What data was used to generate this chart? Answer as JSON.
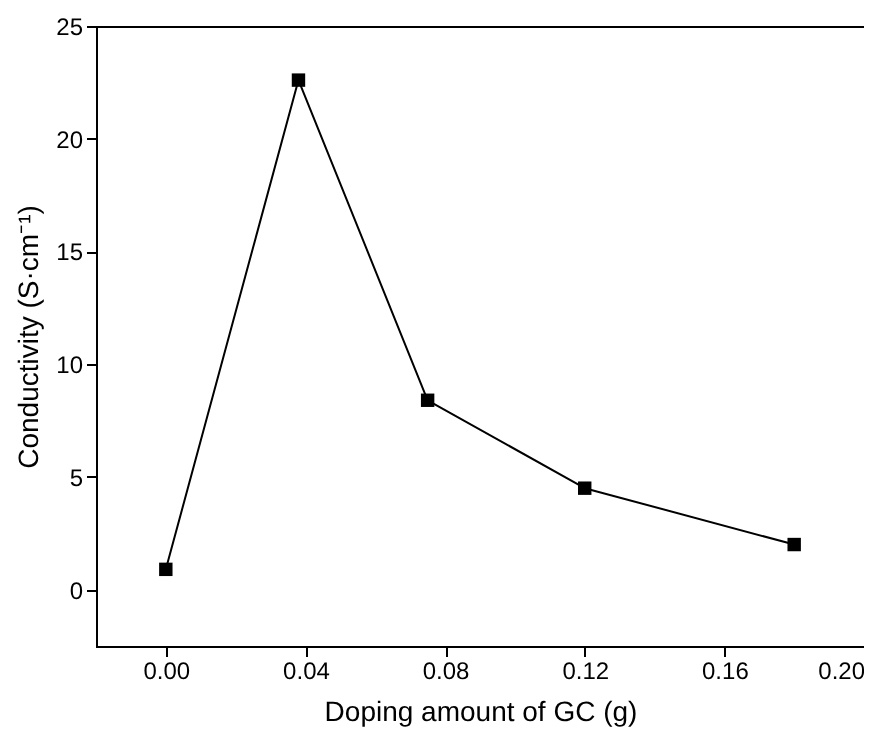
{
  "chart_data": {
    "type": "line",
    "xlabel": "Doping amount of GC (g)",
    "ylabel": "Conductivity (S·cm⁻¹)",
    "x": [
      0,
      0.038,
      0.075,
      0.12,
      0.18
    ],
    "series": [
      {
        "color": "#000000",
        "values": [
          0.9,
          22.6,
          8.4,
          4.5,
          2.0
        ]
      }
    ],
    "xlim": [
      -0.02,
      0.2
    ],
    "xticks": [
      {
        "value": 0,
        "label": "0.00"
      },
      {
        "value": 0.04,
        "label": "0.04"
      },
      {
        "value": 0.08,
        "label": "0.08"
      },
      {
        "value": 0.12,
        "label": "0.12"
      },
      {
        "value": 0.16,
        "label": "0.16"
      },
      {
        "value": 0.2,
        "label": "0.20"
      }
    ],
    "ylim": [
      -2.5,
      25
    ],
    "yticks": [
      0,
      5,
      10,
      15,
      20,
      25
    ],
    "grid": false,
    "marker": "square",
    "line_style": "solid"
  }
}
